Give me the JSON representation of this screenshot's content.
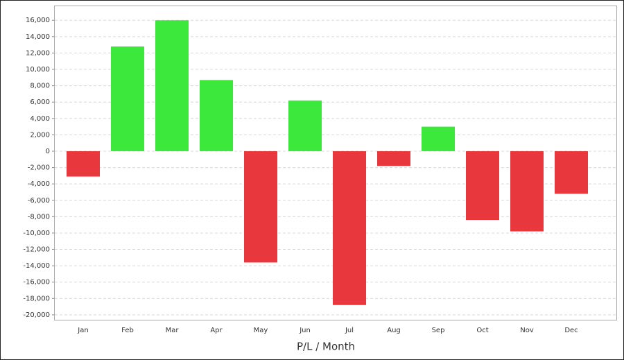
{
  "chart_data": {
    "type": "bar",
    "x_label": "P/L / Month",
    "categories": [
      "Jan",
      "Feb",
      "Mar",
      "Apr",
      "May",
      "Jun",
      "Jul",
      "Aug",
      "Sep",
      "Oct",
      "Nov",
      "Dec"
    ],
    "values": [
      -3100,
      12800,
      16000,
      8700,
      -13600,
      6200,
      -18800,
      -1800,
      3000,
      -8400,
      -9800,
      -5200
    ],
    "positive_color": "#3de83d",
    "negative_color": "#e8383d",
    "ylim": [
      -20600,
      17800
    ],
    "yticks": [
      {
        "value": 16000,
        "label": "16,000"
      },
      {
        "value": 14000,
        "label": "14,000"
      },
      {
        "value": 12000,
        "label": "12,000"
      },
      {
        "value": 10000,
        "label": "10,000"
      },
      {
        "value": 8000,
        "label": "8,000"
      },
      {
        "value": 6000,
        "label": "6,000"
      },
      {
        "value": 4000,
        "label": "4,000"
      },
      {
        "value": 2000,
        "label": "2,000"
      },
      0,
      {
        "value": -2000,
        "label": "-2,000"
      },
      {
        "value": -4000,
        "label": "-4,000"
      },
      {
        "value": -6000,
        "label": "-6,000"
      },
      {
        "value": -8000,
        "label": "-8,000"
      },
      {
        "value": -10000,
        "label": "-10,000"
      },
      {
        "value": -12000,
        "label": "-12,000"
      },
      {
        "value": -14000,
        "label": "-14,000"
      },
      {
        "value": -16000,
        "label": "-16,000"
      },
      {
        "value": -18000,
        "label": "-18,000"
      },
      {
        "value": -20000,
        "label": "-20,000"
      }
    ],
    "grid": true
  }
}
